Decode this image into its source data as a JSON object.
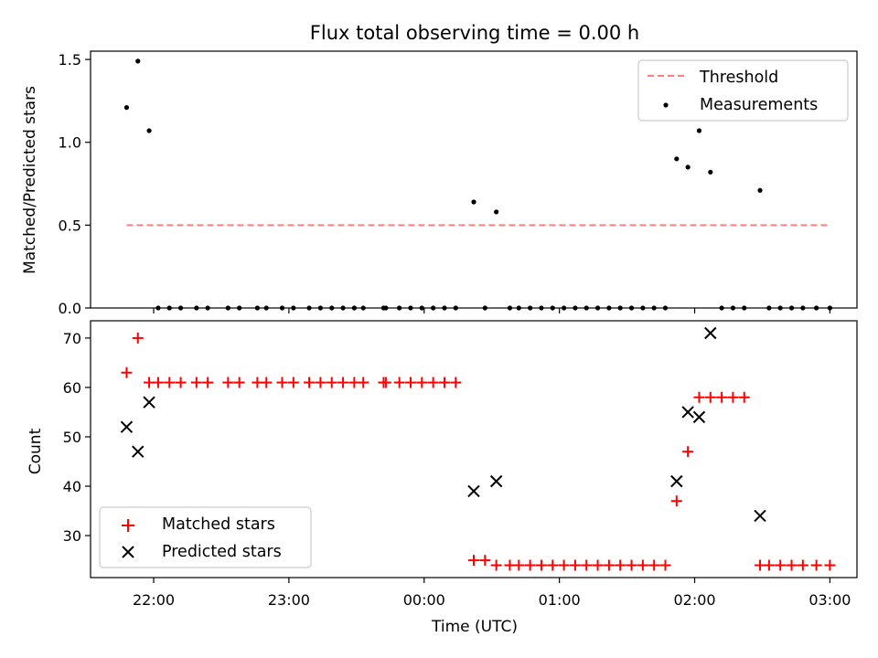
{
  "chart_data": [
    {
      "type": "scatter",
      "title": "Flux total observing time = 0.00 h",
      "xlabel": "",
      "ylabel": "Matched/Predicted stars",
      "xlim": [
        "21:32",
        "03:12"
      ],
      "ylim": [
        0,
        1.55
      ],
      "yticks": [
        "0.0",
        "0.5",
        "1.0",
        "1.5"
      ],
      "legend_position": "top-right",
      "threshold": {
        "name": "Threshold",
        "value": 0.5,
        "x_range": [
          "21:48",
          "03:00"
        ],
        "color": "#ff7f7f",
        "style": "dashed"
      },
      "series": [
        {
          "name": "Measurements",
          "color": "#000000",
          "marker": "dot",
          "points": [
            [
              "21:48",
              1.21
            ],
            [
              "21:53",
              1.49
            ],
            [
              "21:58",
              1.07
            ],
            [
              "22:02",
              0
            ],
            [
              "22:07",
              0
            ],
            [
              "22:12",
              0
            ],
            [
              "22:19",
              0
            ],
            [
              "22:24",
              0
            ],
            [
              "22:33",
              0
            ],
            [
              "22:38",
              0
            ],
            [
              "22:46",
              0
            ],
            [
              "22:50",
              0
            ],
            [
              "22:57",
              0
            ],
            [
              "23:02",
              0
            ],
            [
              "23:09",
              0
            ],
            [
              "23:14",
              0
            ],
            [
              "23:19",
              0
            ],
            [
              "23:24",
              0
            ],
            [
              "23:29",
              0
            ],
            [
              "23:33",
              0
            ],
            [
              "23:42",
              0
            ],
            [
              "23:43",
              0
            ],
            [
              "23:49",
              0
            ],
            [
              "23:54",
              0
            ],
            [
              "23:59",
              0
            ],
            [
              "00:04",
              0
            ],
            [
              "00:09",
              0
            ],
            [
              "00:14",
              0
            ],
            [
              "00:22",
              0.64
            ],
            [
              "00:27",
              0
            ],
            [
              "00:32",
              0.58
            ],
            [
              "00:38",
              0
            ],
            [
              "00:42",
              0
            ],
            [
              "00:47",
              0
            ],
            [
              "00:52",
              0
            ],
            [
              "00:57",
              0
            ],
            [
              "01:02",
              0
            ],
            [
              "01:07",
              0
            ],
            [
              "01:12",
              0
            ],
            [
              "01:17",
              0
            ],
            [
              "01:22",
              0
            ],
            [
              "01:27",
              0
            ],
            [
              "01:32",
              0
            ],
            [
              "01:37",
              0
            ],
            [
              "01:42",
              0
            ],
            [
              "01:47",
              0
            ],
            [
              "01:52",
              0.9
            ],
            [
              "01:57",
              0.85
            ],
            [
              "02:02",
              1.07
            ],
            [
              "02:07",
              0.82
            ],
            [
              "02:12",
              0
            ],
            [
              "02:17",
              0
            ],
            [
              "02:22",
              0
            ],
            [
              "02:29",
              0.71
            ],
            [
              "02:33",
              0
            ],
            [
              "02:38",
              0
            ],
            [
              "02:43",
              0
            ],
            [
              "02:48",
              0
            ],
            [
              "02:54",
              0
            ],
            [
              "03:00",
              0
            ]
          ]
        }
      ]
    },
    {
      "type": "scatter",
      "title": "",
      "xlabel": "Time (UTC)",
      "ylabel": "Count",
      "xlim": [
        "21:32",
        "03:12"
      ],
      "ylim": [
        21.5,
        73.5
      ],
      "yticks": [
        "30",
        "40",
        "50",
        "60",
        "70"
      ],
      "xticks": [
        "22:00",
        "23:00",
        "00:00",
        "01:00",
        "02:00",
        "03:00"
      ],
      "legend_position": "bottom-left",
      "series": [
        {
          "name": "Matched stars",
          "color": "#ff0000",
          "marker": "plus",
          "points": [
            [
              "21:48",
              63
            ],
            [
              "21:53",
              70
            ],
            [
              "21:58",
              61
            ],
            [
              "22:02",
              61
            ],
            [
              "22:07",
              61
            ],
            [
              "22:12",
              61
            ],
            [
              "22:19",
              61
            ],
            [
              "22:24",
              61
            ],
            [
              "22:33",
              61
            ],
            [
              "22:38",
              61
            ],
            [
              "22:46",
              61
            ],
            [
              "22:50",
              61
            ],
            [
              "22:57",
              61
            ],
            [
              "23:02",
              61
            ],
            [
              "23:09",
              61
            ],
            [
              "23:14",
              61
            ],
            [
              "23:19",
              61
            ],
            [
              "23:24",
              61
            ],
            [
              "23:29",
              61
            ],
            [
              "23:33",
              61
            ],
            [
              "23:42",
              61
            ],
            [
              "23:43",
              61
            ],
            [
              "23:49",
              61
            ],
            [
              "23:54",
              61
            ],
            [
              "23:59",
              61
            ],
            [
              "00:04",
              61
            ],
            [
              "00:09",
              61
            ],
            [
              "00:14",
              61
            ],
            [
              "00:22",
              25
            ],
            [
              "00:27",
              25
            ],
            [
              "00:32",
              24
            ],
            [
              "00:38",
              24
            ],
            [
              "00:42",
              24
            ],
            [
              "00:47",
              24
            ],
            [
              "00:52",
              24
            ],
            [
              "00:57",
              24
            ],
            [
              "01:02",
              24
            ],
            [
              "01:07",
              24
            ],
            [
              "01:12",
              24
            ],
            [
              "01:17",
              24
            ],
            [
              "01:22",
              24
            ],
            [
              "01:27",
              24
            ],
            [
              "01:32",
              24
            ],
            [
              "01:37",
              24
            ],
            [
              "01:42",
              24
            ],
            [
              "01:47",
              24
            ],
            [
              "01:52",
              37
            ],
            [
              "01:57",
              47
            ],
            [
              "02:02",
              58
            ],
            [
              "02:07",
              58
            ],
            [
              "02:12",
              58
            ],
            [
              "02:17",
              58
            ],
            [
              "02:22",
              58
            ],
            [
              "02:29",
              24
            ],
            [
              "02:33",
              24
            ],
            [
              "02:38",
              24
            ],
            [
              "02:43",
              24
            ],
            [
              "02:48",
              24
            ],
            [
              "02:54",
              24
            ],
            [
              "03:00",
              24
            ]
          ]
        },
        {
          "name": "Predicted stars",
          "color": "#000000",
          "marker": "x",
          "points": [
            [
              "21:48",
              52
            ],
            [
              "21:53",
              47
            ],
            [
              "21:58",
              57
            ],
            [
              "00:22",
              39
            ],
            [
              "00:32",
              41
            ],
            [
              "01:52",
              41
            ],
            [
              "01:57",
              55
            ],
            [
              "02:02",
              54
            ],
            [
              "02:07",
              71
            ],
            [
              "02:29",
              34
            ]
          ]
        }
      ]
    }
  ]
}
